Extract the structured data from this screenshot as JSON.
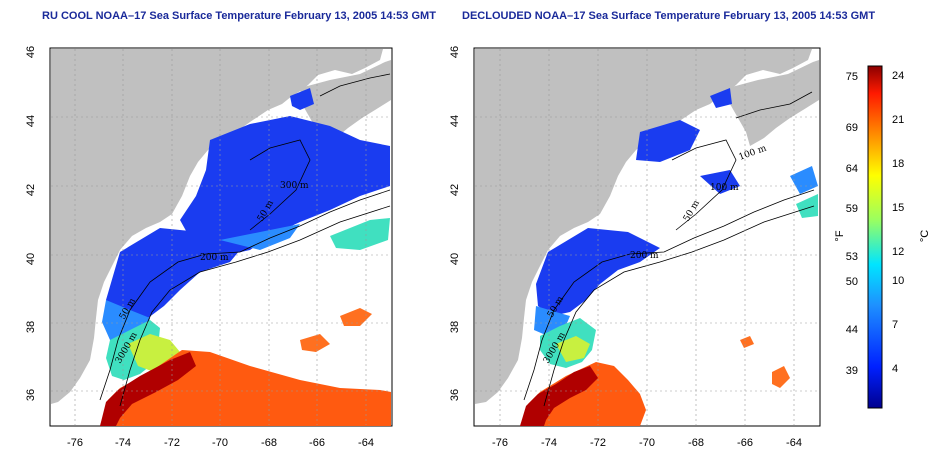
{
  "titles": {
    "left": "RU COOL NOAA–17 Sea Surface Temperature February 13, 2005 14:53 GMT",
    "right": "DECLOUDED NOAA–17 Sea Surface Temperature February 13, 2005 14:53 GMT"
  },
  "map_axes": {
    "lon_ticks": [
      "-76",
      "-74",
      "-72",
      "-70",
      "-68",
      "-66",
      "-64"
    ],
    "lat_ticks": [
      "36",
      "38",
      "40",
      "42",
      "44",
      "46"
    ]
  },
  "contour_labels": {
    "left": [
      "300 m",
      "50 m",
      "200 m",
      "50 m",
      "3000 m"
    ],
    "right": [
      "100 m",
      "100 m",
      "50 m",
      "200 m",
      "50 m",
      "3000 m"
    ]
  },
  "colorbar": {
    "f_label": "°F",
    "c_label": "°C",
    "f_ticks": [
      "75",
      "69",
      "64",
      "59",
      "53",
      "50",
      "44",
      "39"
    ],
    "c_ticks": [
      "24",
      "21",
      "18",
      "15",
      "12",
      "10",
      "7",
      "4"
    ]
  },
  "colors": {
    "land": "#c0c0c0",
    "ocean_nodata": "#ffffff",
    "title": "#1a2a9a"
  }
}
